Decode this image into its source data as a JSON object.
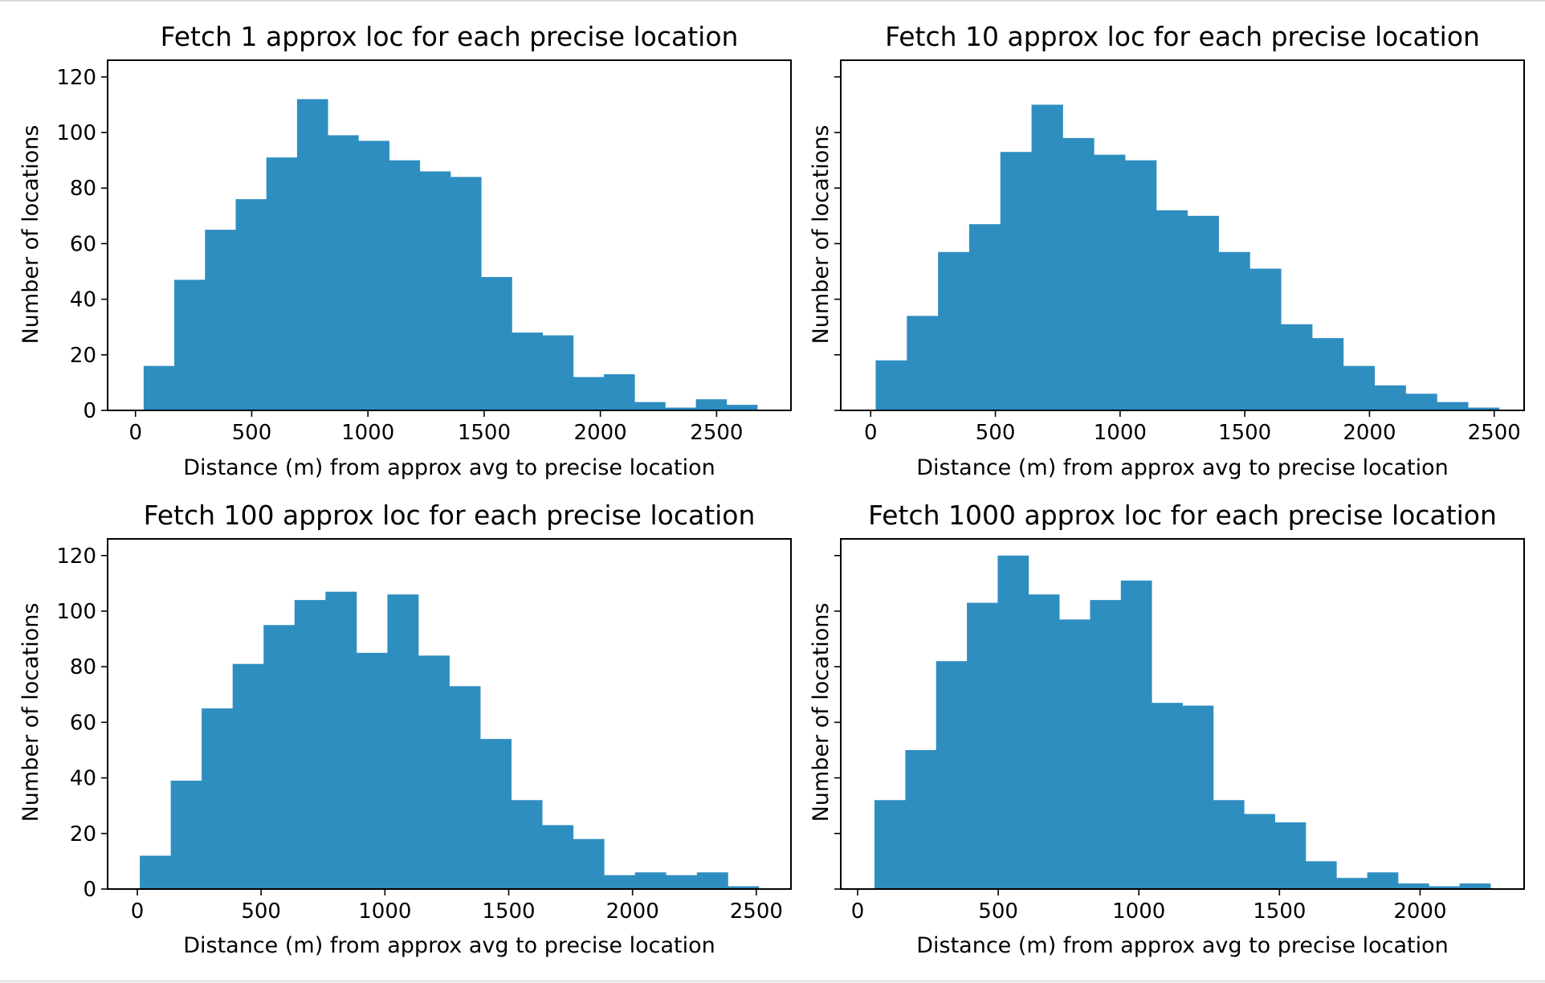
{
  "bar_color": "#2e8ec0",
  "chart_data": [
    {
      "type": "bar",
      "title": "Fetch 1 approx loc for each precise location",
      "xlabel": "Distance (m) from approx avg to precise location",
      "ylabel": "Number of locations",
      "xlim": [
        -120,
        2820
      ],
      "ylim": [
        0,
        126
      ],
      "xticks": [
        0,
        500,
        1000,
        1500,
        2000,
        2500
      ],
      "yticks": [
        0,
        20,
        40,
        60,
        80,
        100,
        120
      ],
      "show_ytick_labels": true,
      "bin_edges": [
        35,
        167,
        299,
        431,
        563,
        695,
        827,
        959,
        1091,
        1223,
        1355,
        1487,
        1619,
        1751,
        1883,
        2015,
        2147,
        2279,
        2411,
        2543,
        2675
      ],
      "values": [
        16,
        47,
        65,
        76,
        91,
        112,
        99,
        97,
        90,
        86,
        84,
        48,
        28,
        27,
        12,
        13,
        3,
        1,
        4,
        2
      ]
    },
    {
      "type": "bar",
      "title": "Fetch 10 approx loc for each precise location",
      "xlabel": "Distance (m) from approx avg to precise location",
      "ylabel": "Number of locations",
      "xlim": [
        -120,
        2620
      ],
      "ylim": [
        0,
        126
      ],
      "xticks": [
        0,
        500,
        1000,
        1500,
        2000,
        2500
      ],
      "yticks": [
        0,
        20,
        40,
        60,
        80,
        100,
        120
      ],
      "show_ytick_labels": false,
      "bin_edges": [
        20,
        145,
        270,
        395,
        520,
        645,
        770,
        895,
        1020,
        1145,
        1270,
        1395,
        1520,
        1645,
        1770,
        1895,
        2020,
        2145,
        2270,
        2395,
        2520
      ],
      "values": [
        18,
        34,
        57,
        67,
        93,
        110,
        98,
        92,
        90,
        72,
        70,
        57,
        51,
        31,
        26,
        16,
        9,
        6,
        3,
        1
      ]
    },
    {
      "type": "bar",
      "title": "Fetch 100 approx loc for each precise location",
      "xlabel": "Distance (m) from approx avg to precise location",
      "ylabel": "Number of locations",
      "xlim": [
        -120,
        2640
      ],
      "ylim": [
        0,
        126
      ],
      "xticks": [
        0,
        500,
        1000,
        1500,
        2000,
        2500
      ],
      "yticks": [
        0,
        20,
        40,
        60,
        80,
        100,
        120
      ],
      "show_ytick_labels": true,
      "bin_edges": [
        10,
        135,
        260,
        385,
        510,
        635,
        760,
        885,
        1010,
        1135,
        1260,
        1385,
        1510,
        1635,
        1760,
        1885,
        2010,
        2135,
        2260,
        2385,
        2510
      ],
      "values": [
        12,
        39,
        65,
        81,
        95,
        104,
        107,
        85,
        106,
        84,
        73,
        54,
        32,
        23,
        18,
        5,
        6,
        5,
        6,
        1
      ]
    },
    {
      "type": "bar",
      "title": "Fetch 1000 approx loc for each precise location",
      "xlabel": "Distance (m) from approx avg to precise location",
      "ylabel": "Number of locations",
      "xlim": [
        -60,
        2370
      ],
      "ylim": [
        0,
        126
      ],
      "xticks": [
        0,
        500,
        1000,
        1500,
        2000
      ],
      "yticks": [
        0,
        20,
        40,
        60,
        80,
        100,
        120
      ],
      "show_ytick_labels": false,
      "bin_edges": [
        60,
        169.5,
        279,
        388.5,
        498,
        607.5,
        717,
        826.5,
        936,
        1045.5,
        1155,
        1264.5,
        1374,
        1483.5,
        1593,
        1702.5,
        1812,
        1921.5,
        2031,
        2140.5,
        2250
      ],
      "values": [
        32,
        50,
        82,
        103,
        120,
        106,
        97,
        104,
        111,
        67,
        66,
        32,
        27,
        24,
        10,
        4,
        6,
        2,
        1,
        2
      ]
    }
  ]
}
